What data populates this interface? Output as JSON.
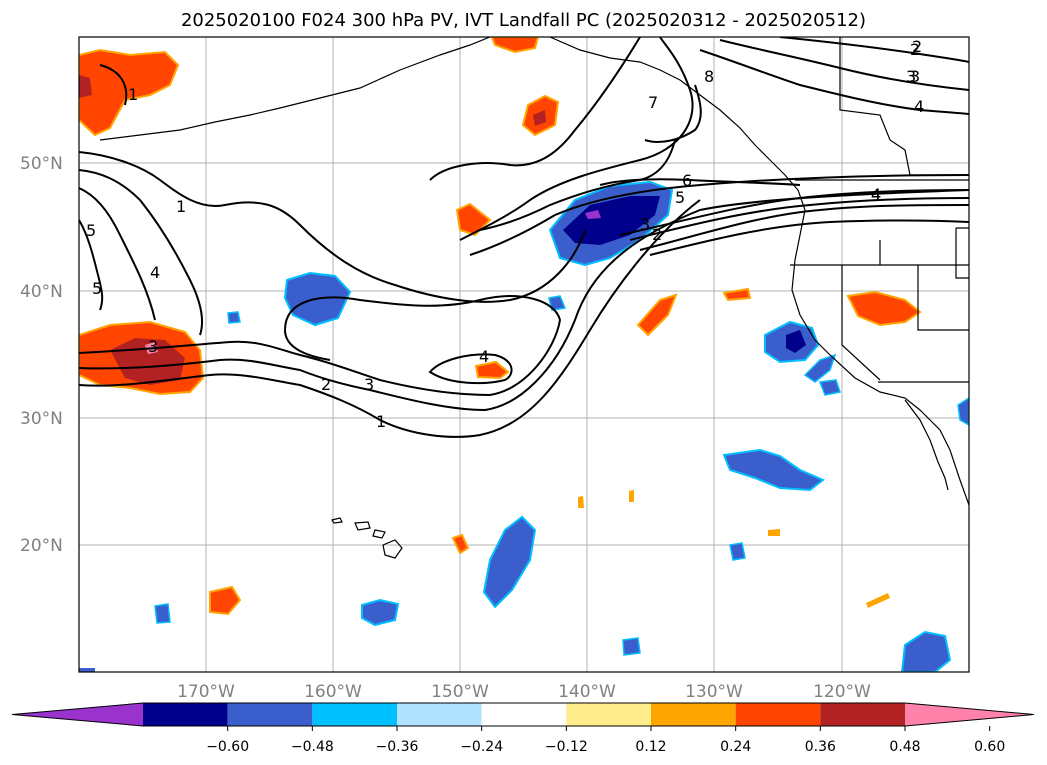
{
  "title": "2025020100 F024 300 hPa PV, IVT Landfall PC (2025020312 - 2025020512)",
  "map": {
    "lat_labels": [
      "50°N",
      "40°N",
      "30°N",
      "20°N"
    ],
    "lon_labels": [
      "170°W",
      "160°W",
      "150°W",
      "140°W",
      "130°W",
      "120°W"
    ],
    "contour_labels": [
      "1",
      "1",
      "1",
      "2",
      "3",
      "4",
      "5",
      "5",
      "3",
      "4",
      "2",
      "3",
      "6",
      "5",
      "4",
      "3",
      "2",
      "7",
      "8",
      "2",
      "3",
      "4",
      "4"
    ]
  },
  "colorbar": {
    "labels": [
      "−0.60",
      "−0.48",
      "−0.36",
      "−0.24",
      "−0.12",
      "0.12",
      "0.24",
      "0.36",
      "0.48",
      "0.60"
    ],
    "colors": [
      "#9a32cd",
      "#00008b",
      "#3a5fcd",
      "#00bfff",
      "#b0e2ff",
      "#ffffff",
      "#ffec8b",
      "#ffa500",
      "#ff4500",
      "#b22222",
      "#ff82ab"
    ]
  }
}
